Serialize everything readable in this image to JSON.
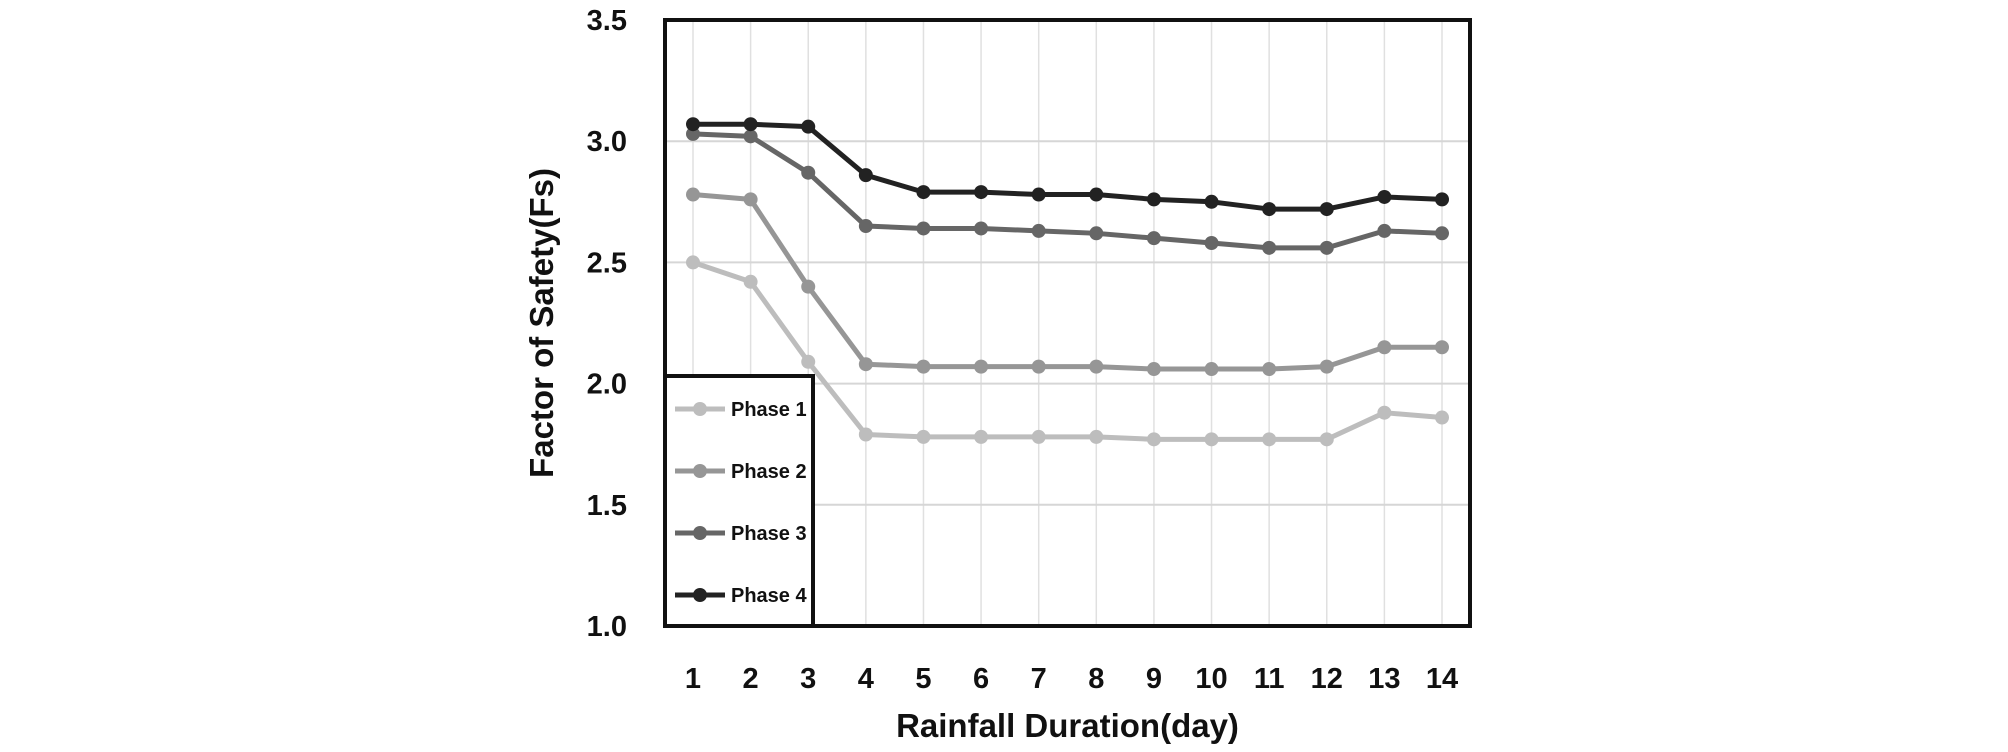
{
  "chart_data": {
    "type": "line",
    "title": "",
    "xlabel": "Rainfall Duration(day)",
    "ylabel": "Factor of Safety(Fs)",
    "x": [
      1,
      2,
      3,
      4,
      5,
      6,
      7,
      8,
      9,
      10,
      11,
      12,
      13,
      14
    ],
    "x_tick_labels": [
      "1",
      "2",
      "3",
      "4",
      "5",
      "6",
      "7",
      "8",
      "9",
      "10",
      "11",
      "12",
      "13",
      "14"
    ],
    "ylim": [
      1.0,
      3.5
    ],
    "y_tick_labels": [
      "1.0",
      "1.5",
      "2.0",
      "2.5",
      "3.0",
      "3.5"
    ],
    "grid": true,
    "legend_position": "bottom-left",
    "series": [
      {
        "name": "Phase 1",
        "color": "#bdbdbd",
        "values": [
          2.5,
          2.42,
          2.09,
          1.79,
          1.78,
          1.78,
          1.78,
          1.78,
          1.77,
          1.77,
          1.77,
          1.77,
          1.88,
          1.86
        ]
      },
      {
        "name": "Phase 2",
        "color": "#969696",
        "values": [
          2.78,
          2.76,
          2.4,
          2.08,
          2.07,
          2.07,
          2.07,
          2.07,
          2.06,
          2.06,
          2.06,
          2.07,
          2.15,
          2.15
        ]
      },
      {
        "name": "Phase 3",
        "color": "#666666",
        "values": [
          3.03,
          3.02,
          2.87,
          2.65,
          2.64,
          2.64,
          2.63,
          2.62,
          2.6,
          2.58,
          2.56,
          2.56,
          2.63,
          2.62
        ]
      },
      {
        "name": "Phase 4",
        "color": "#222222",
        "values": [
          3.07,
          3.07,
          3.06,
          2.86,
          2.79,
          2.79,
          2.78,
          2.78,
          2.76,
          2.75,
          2.72,
          2.72,
          2.77,
          2.76
        ]
      }
    ]
  }
}
